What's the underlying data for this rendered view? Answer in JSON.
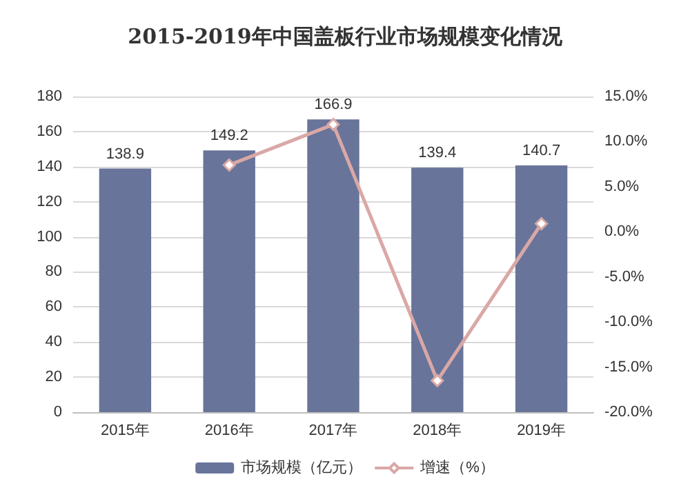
{
  "chart_data": {
    "type": "bar",
    "title": "2015-2019年中国盖板行业市场规模变化情况",
    "categories": [
      "2015年",
      "2016年",
      "2017年",
      "2018年",
      "2019年"
    ],
    "series": [
      {
        "name": "市场规模（亿元）",
        "color": "#68749a",
        "values": [
          138.9,
          149.2,
          166.9,
          139.4,
          140.7
        ],
        "data_labels": true
      },
      {
        "name": "增速（%）",
        "type": "line",
        "axis": "y2",
        "color": "#d9a8a6",
        "marker": "diamond",
        "values": [
          null,
          7.4,
          11.9,
          -16.5,
          0.9
        ]
      }
    ],
    "ylim": [
      0,
      180
    ],
    "yticks": [
      0,
      20,
      40,
      60,
      80,
      100,
      120,
      140,
      160,
      180
    ],
    "y2lim": [
      -20,
      15
    ],
    "y2ticks": [
      {
        "value": -20,
        "label": "-20.0%"
      },
      {
        "value": -15,
        "label": "-15.0%"
      },
      {
        "value": -10,
        "label": "-10.0%"
      },
      {
        "value": -5,
        "label": "-5.0%"
      },
      {
        "value": 0,
        "label": "0.0%"
      },
      {
        "value": 5,
        "label": "5.0%"
      },
      {
        "value": 10,
        "label": "10.0%"
      },
      {
        "value": 15,
        "label": "15.0%"
      }
    ],
    "grid": "y",
    "legend": "bottom"
  }
}
